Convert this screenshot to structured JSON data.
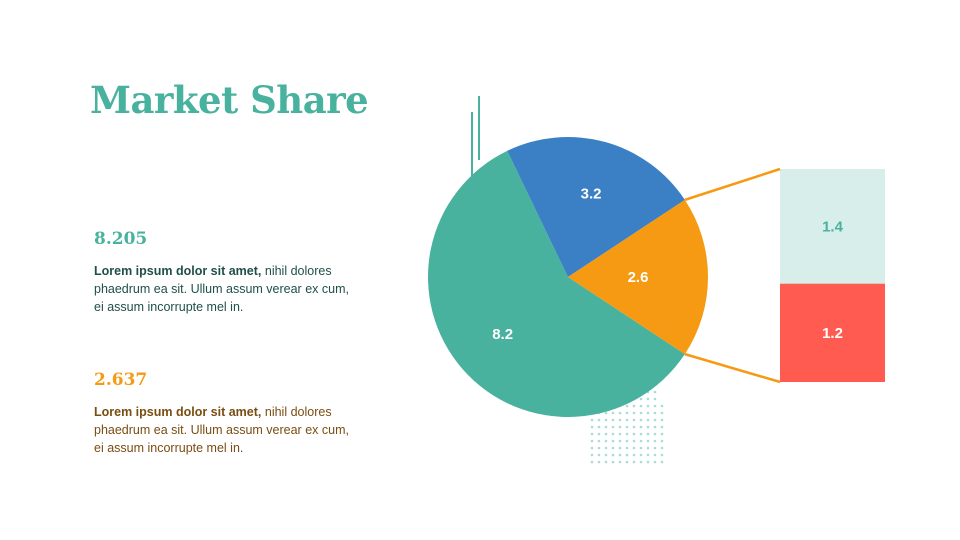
{
  "title": "Market Share",
  "colors": {
    "teal": "#48b29f",
    "blue": "#3b7fc4",
    "orange": "#f59a12",
    "light_teal": "#d7eeeb",
    "red": "#ff5b50",
    "stat1_text": "#1f4f48",
    "stat2_text": "#7a4d12",
    "dots": "#a8ddd3"
  },
  "stats": [
    {
      "value": "8.205",
      "bold_text": "Lorem ipsum dolor sit amet,",
      "text": " nihil dolores phaedrum ea sit. Ullum assum verear ex cum, ei assum incorrupte mel in."
    },
    {
      "value": "2.637",
      "bold_text": "Lorem ipsum dolor sit amet,",
      "text": " nihil dolores phaedrum ea sit. Ullum assum verear ex cum, ei assum incorrupte mel in."
    }
  ],
  "chart_data": {
    "type": "pie",
    "pie": {
      "slices": [
        {
          "label": "8.2",
          "value": 8.2,
          "color": "#48b29f"
        },
        {
          "label": "3.2",
          "value": 3.2,
          "color": "#3b7fc4"
        },
        {
          "label": "2.6",
          "value": 2.6,
          "color": "#f59a12"
        }
      ]
    },
    "breakdown": {
      "parent_slice": "2.6",
      "segments": [
        {
          "label": "1.4",
          "value": 1.4,
          "color": "#d7eeeb",
          "text_color": "#48b29f"
        },
        {
          "label": "1.2",
          "value": 1.2,
          "color": "#ff5b50",
          "text_color": "#ffffff"
        }
      ]
    }
  }
}
